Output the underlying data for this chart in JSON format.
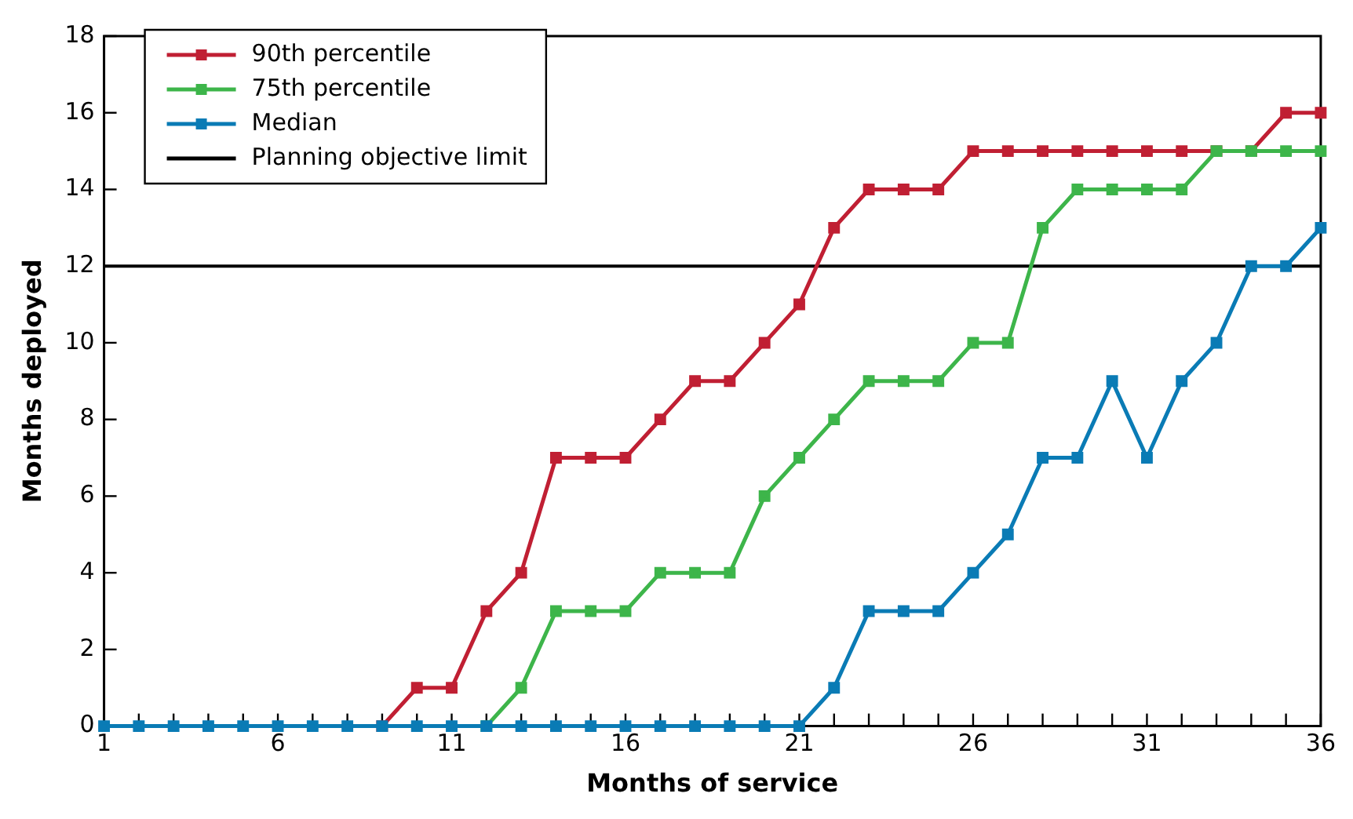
{
  "chart_data": {
    "type": "line",
    "xlabel": "Months of service",
    "ylabel": "Months deployed",
    "x": [
      1,
      2,
      3,
      4,
      5,
      6,
      7,
      8,
      9,
      10,
      11,
      12,
      13,
      14,
      15,
      16,
      17,
      18,
      19,
      20,
      21,
      22,
      23,
      24,
      25,
      26,
      27,
      28,
      29,
      30,
      31,
      32,
      33,
      34,
      35,
      36
    ],
    "series": [
      {
        "name": "90th percentile",
        "color": "#c01f33",
        "values": [
          null,
          null,
          null,
          null,
          null,
          null,
          null,
          null,
          0,
          1,
          1,
          3,
          4,
          7,
          7,
          7,
          8,
          9,
          9,
          10,
          11,
          13,
          14,
          14,
          14,
          15,
          15,
          15,
          15,
          15,
          15,
          15,
          15,
          15,
          16,
          16
        ]
      },
      {
        "name": "75th percentile",
        "color": "#3db54a",
        "values": [
          null,
          null,
          null,
          null,
          null,
          null,
          null,
          null,
          null,
          null,
          null,
          0,
          1,
          3,
          3,
          3,
          4,
          4,
          4,
          6,
          7,
          8,
          9,
          9,
          9,
          10,
          10,
          13,
          14,
          14,
          14,
          14,
          15,
          15,
          15,
          15
        ]
      },
      {
        "name": "Median",
        "color": "#0a7bb5",
        "values": [
          0,
          0,
          0,
          0,
          0,
          0,
          0,
          0,
          0,
          0,
          0,
          0,
          0,
          0,
          0,
          0,
          0,
          0,
          0,
          0,
          0,
          1,
          3,
          3,
          3,
          4,
          5,
          7,
          7,
          9,
          7,
          9,
          10,
          12,
          12,
          13
        ]
      }
    ],
    "ref_lines": [
      {
        "axis": "y",
        "value": 12,
        "label": "Planning objective limit",
        "color": "#000000"
      }
    ],
    "xlim": [
      1,
      36
    ],
    "xticks": [
      1,
      {
        "value": 2,
        "label": null
      },
      {
        "value": 3,
        "label": null
      },
      {
        "value": 4,
        "label": null
      },
      {
        "value": 5,
        "label": null
      },
      6,
      {
        "value": 7,
        "label": null
      },
      {
        "value": 8,
        "label": null
      },
      {
        "value": 9,
        "label": null
      },
      {
        "value": 10,
        "label": null
      },
      11,
      {
        "value": 12,
        "label": null
      },
      {
        "value": 13,
        "label": null
      },
      {
        "value": 14,
        "label": null
      },
      {
        "value": 15,
        "label": null
      },
      16,
      {
        "value": 17,
        "label": null
      },
      {
        "value": 18,
        "label": null
      },
      {
        "value": 19,
        "label": null
      },
      {
        "value": 20,
        "label": null
      },
      21,
      {
        "value": 22,
        "label": null
      },
      {
        "value": 23,
        "label": null
      },
      {
        "value": 24,
        "label": null
      },
      {
        "value": 25,
        "label": null
      },
      26,
      {
        "value": 27,
        "label": null
      },
      {
        "value": 28,
        "label": null
      },
      {
        "value": 29,
        "label": null
      },
      {
        "value": 30,
        "label": null
      },
      31,
      {
        "value": 32,
        "label": null
      },
      {
        "value": 33,
        "label": null
      },
      {
        "value": 34,
        "label": null
      },
      {
        "value": 35,
        "label": null
      },
      36
    ],
    "ylim": [
      0,
      18
    ],
    "yticks": [
      0,
      2,
      4,
      6,
      8,
      10,
      12,
      14,
      16,
      18
    ],
    "grid": false,
    "legend": "top left",
    "marker": "square",
    "line_style": "solid"
  }
}
